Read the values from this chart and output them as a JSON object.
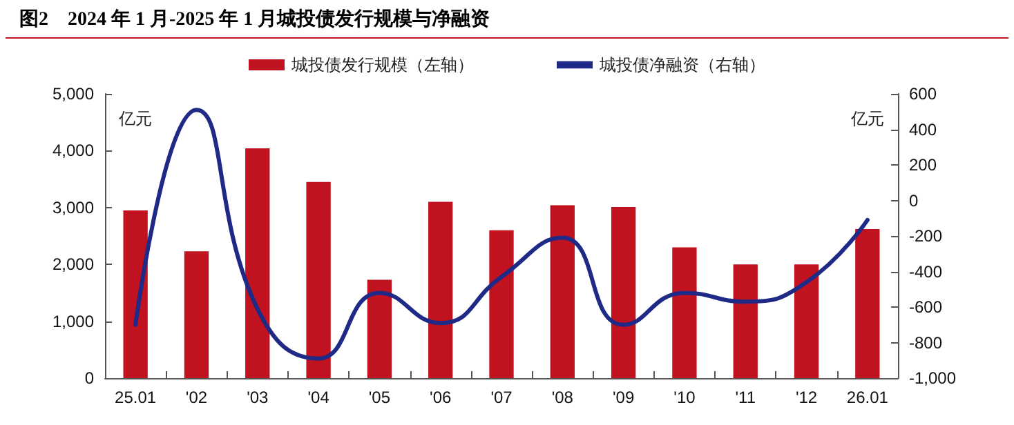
{
  "chart_data": {
    "type": "bar",
    "title": "图2　2024 年 1 月-2025 年 1 月城投债发行规模与净融资",
    "ylabel": "亿元",
    "y2label": "亿元",
    "categories": [
      "25.01",
      "'02",
      "'03",
      "'04",
      "'05",
      "'06",
      "'07",
      "'08",
      "'09",
      "'10",
      "'11",
      "'12",
      "26.01"
    ],
    "series": [
      {
        "name": "城投债发行规模（左轴）",
        "color": "#c0121f",
        "values": [
          2950,
          2230,
          4040,
          3450,
          1730,
          3100,
          2600,
          3040,
          3010,
          2300,
          2000,
          2000,
          2620
        ]
      },
      {
        "name": "城投债净融资（右轴）",
        "type": "line",
        "axis": "y2",
        "color": "#1f2a87",
        "values": [
          -700,
          510,
          -610,
          -890,
          -520,
          -690,
          -430,
          -210,
          -700,
          -520,
          -570,
          -460,
          -110
        ]
      }
    ],
    "ylim": [
      0,
      5000
    ],
    "yticks": [
      0,
      {
        "value": 1000,
        "label": "1,000"
      },
      {
        "value": 2000,
        "label": "2,000"
      },
      {
        "value": 3000,
        "label": "3,000"
      },
      {
        "value": 4000,
        "label": "4,000"
      },
      {
        "value": 5000,
        "label": "5,000"
      }
    ],
    "y2lim": [
      -1000,
      600
    ],
    "y2ticks": [
      {
        "value": -1000,
        "label": "-1,000"
      },
      -800,
      -600,
      -400,
      -200,
      0,
      200,
      400,
      600
    ],
    "grid": false,
    "legend": "top",
    "marker": "none",
    "line_style": "solid"
  }
}
